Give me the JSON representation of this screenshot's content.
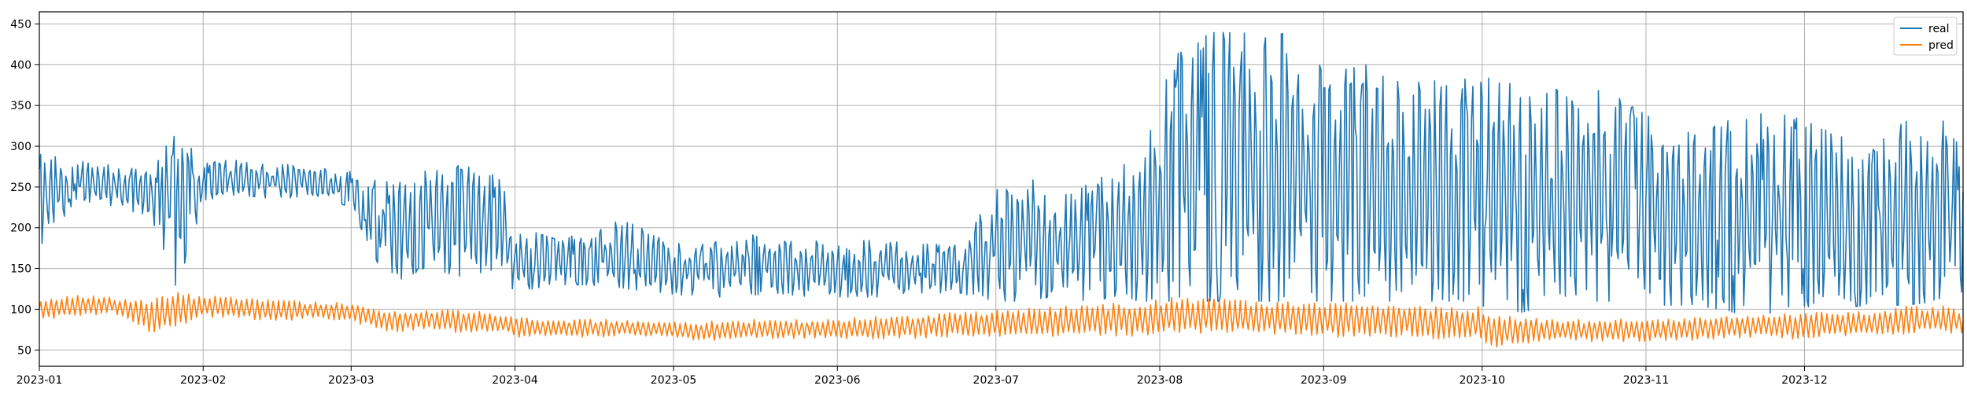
{
  "chart_data": {
    "type": "line",
    "grid": true,
    "legend_placement": "top-right",
    "xlim": [
      "2023-01-01",
      "2023-12-31"
    ],
    "ylim": [
      30,
      465
    ],
    "x_ticks": [
      "2023-01",
      "2023-02",
      "2023-03",
      "2023-04",
      "2023-05",
      "2023-06",
      "2023-07",
      "2023-08",
      "2023-09",
      "2023-10",
      "2023-11",
      "2023-12"
    ],
    "y_ticks": [
      50,
      100,
      150,
      200,
      250,
      300,
      350,
      400,
      450
    ],
    "x": [
      "2023-01-01",
      "2023-01-08",
      "2023-01-15",
      "2023-01-22",
      "2023-01-27",
      "2023-02-01",
      "2023-02-08",
      "2023-02-15",
      "2023-02-22",
      "2023-03-01",
      "2023-03-08",
      "2023-03-15",
      "2023-03-22",
      "2023-03-29",
      "2023-04-01",
      "2023-04-08",
      "2023-04-15",
      "2023-04-22",
      "2023-04-29",
      "2023-05-06",
      "2023-05-13",
      "2023-05-20",
      "2023-05-27",
      "2023-06-03",
      "2023-06-10",
      "2023-06-17",
      "2023-06-24",
      "2023-07-01",
      "2023-07-08",
      "2023-07-15",
      "2023-07-22",
      "2023-07-29",
      "2023-08-05",
      "2023-08-12",
      "2023-08-19",
      "2023-08-26",
      "2023-09-02",
      "2023-09-09",
      "2023-09-16",
      "2023-09-23",
      "2023-09-30",
      "2023-10-04",
      "2023-10-11",
      "2023-10-18",
      "2023-10-25",
      "2023-11-01",
      "2023-11-08",
      "2023-11-15",
      "2023-11-22",
      "2023-11-29",
      "2023-12-06",
      "2023-12-13",
      "2023-12-20",
      "2023-12-27",
      "2023-12-31"
    ],
    "series": [
      {
        "name": "real",
        "color": "#1f77b4",
        "low": [
          170,
          235,
          225,
          215,
          125,
          230,
          240,
          235,
          240,
          225,
          130,
          150,
          140,
          150,
          120,
          130,
          130,
          125,
          120,
          115,
          115,
          120,
          115,
          115,
          115,
          120,
          120,
          110,
          110,
          110,
          110,
          110,
          110,
          110,
          110,
          110,
          110,
          110,
          110,
          110,
          110,
          90,
          100,
          110,
          110,
          105,
          105,
          100,
          90,
          105,
          100,
          105,
          105,
          110,
          110
        ],
        "high": [
          290,
          285,
          280,
          270,
          320,
          280,
          285,
          280,
          275,
          270,
          260,
          270,
          280,
          270,
          200,
          190,
          190,
          215,
          185,
          180,
          190,
          195,
          185,
          180,
          190,
          180,
          180,
          250,
          260,
          240,
          270,
          300,
          440,
          445,
          440,
          440,
          400,
          400,
          390,
          385,
          395,
          380,
          375,
          370,
          370,
          340,
          320,
          330,
          340,
          340,
          320,
          290,
          335,
          340,
          300
        ]
      },
      {
        "name": "pred",
        "color": "#ff7f0e",
        "low": [
          85,
          90,
          95,
          70,
          75,
          90,
          88,
          85,
          88,
          85,
          70,
          75,
          70,
          72,
          65,
          65,
          65,
          66,
          66,
          60,
          62,
          63,
          64,
          62,
          63,
          64,
          65,
          65,
          65,
          66,
          66,
          66,
          68,
          70,
          68,
          68,
          65,
          65,
          65,
          62,
          60,
          52,
          58,
          60,
          60,
          60,
          60,
          62,
          65,
          62,
          65,
          65,
          68,
          70,
          70
        ],
        "high": [
          115,
          118,
          115,
          112,
          122,
          118,
          115,
          112,
          110,
          108,
          100,
          100,
          100,
          95,
          92,
          88,
          88,
          88,
          85,
          85,
          88,
          88,
          88,
          90,
          92,
          95,
          98,
          100,
          103,
          105,
          108,
          110,
          118,
          115,
          110,
          110,
          108,
          110,
          108,
          105,
          105,
          95,
          90,
          88,
          88,
          90,
          90,
          92,
          95,
          95,
          98,
          98,
          105,
          105,
          100
        ]
      }
    ]
  }
}
